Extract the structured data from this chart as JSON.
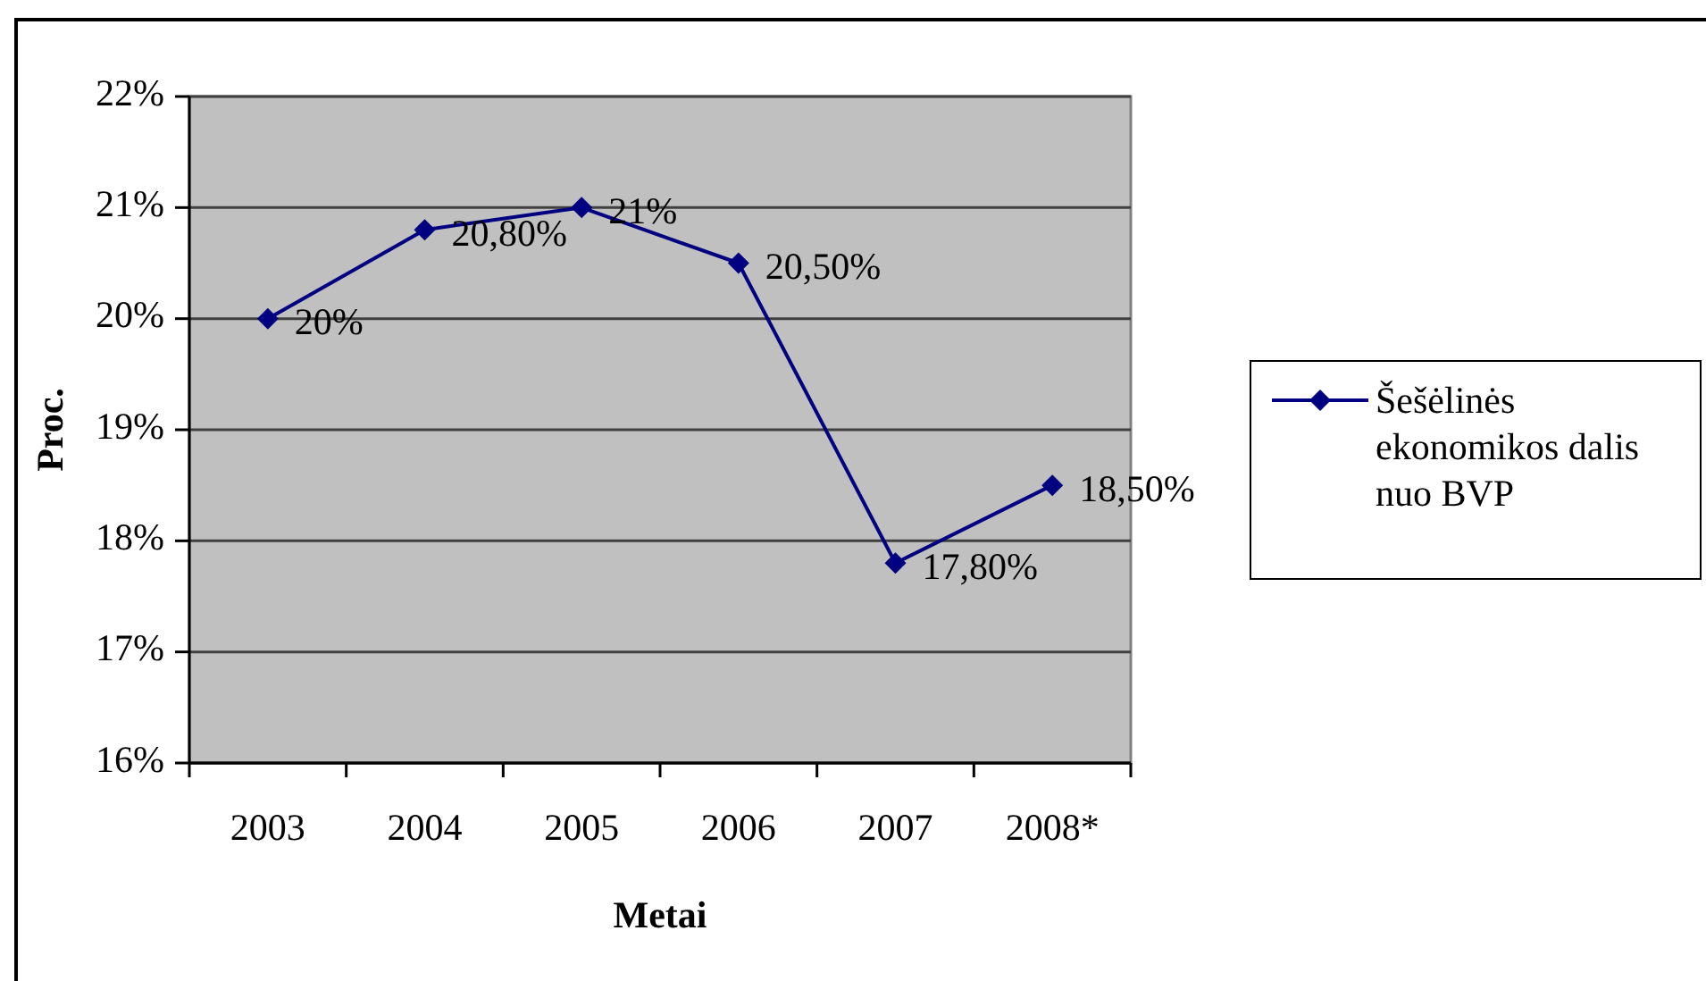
{
  "chart_data": {
    "type": "line",
    "xlabel": "Metai",
    "ylabel": "Proc.",
    "categories": [
      "2003",
      "2004",
      "2005",
      "2006",
      "2007",
      "2008*"
    ],
    "series": [
      {
        "name": "Šešėlinės ekonomikos dalis nuo BVP",
        "color": "#000080",
        "values": [
          20,
          20.8,
          21,
          20.5,
          17.8,
          18.5
        ],
        "value_labels": [
          "20%",
          "20,80%",
          "21%",
          "20,50%",
          "17,80%",
          "18,50%"
        ]
      }
    ],
    "ylim": [
      16,
      22
    ],
    "yticks": [
      {
        "value": 16,
        "label": "16%"
      },
      {
        "value": 17,
        "label": "17%"
      },
      {
        "value": 18,
        "label": "18%"
      },
      {
        "value": 19,
        "label": "19%"
      },
      {
        "value": 20,
        "label": "20%"
      },
      {
        "value": 21,
        "label": "21%"
      },
      {
        "value": 22,
        "label": "22%"
      }
    ],
    "grid": "y",
    "legend": "right",
    "marker": "diamond",
    "line_style": "solid"
  }
}
